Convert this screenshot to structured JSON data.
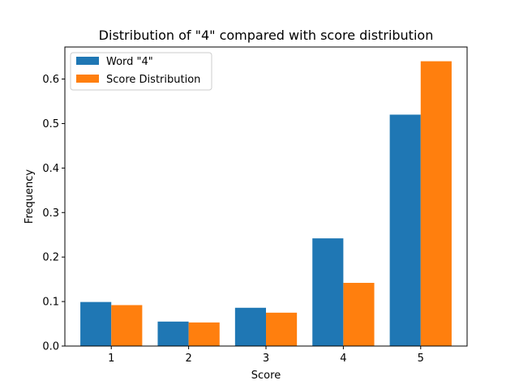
{
  "chart_data": {
    "type": "bar",
    "title": "Distribution of \"4\" compared with score distribution",
    "xlabel": "Score",
    "ylabel": "Frequency",
    "categories": [
      "1",
      "2",
      "3",
      "4",
      "5"
    ],
    "series": [
      {
        "name": "Word \"4\"",
        "values": [
          0.099,
          0.055,
          0.086,
          0.242,
          0.52
        ],
        "color": "#1f77b4"
      },
      {
        "name": "Score Distribution",
        "values": [
          0.092,
          0.053,
          0.075,
          0.142,
          0.64
        ],
        "color": "#ff7f0e"
      }
    ],
    "ylim": [
      0,
      0.672
    ],
    "yticks": [
      "0.0",
      "0.1",
      "0.2",
      "0.3",
      "0.4",
      "0.5",
      "0.6"
    ],
    "grid": false,
    "legend_position": "top-left"
  }
}
